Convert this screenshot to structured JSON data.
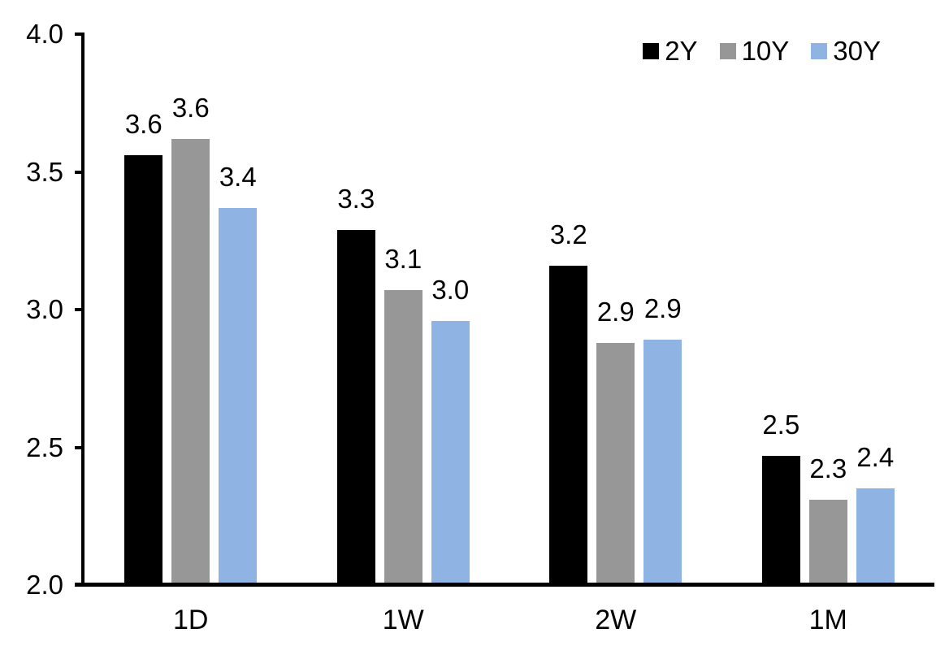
{
  "chart_data": {
    "type": "bar",
    "title": "",
    "categories": [
      "1D",
      "1W",
      "2W",
      "1M"
    ],
    "series": [
      {
        "name": "2Y",
        "color": "#000000",
        "values": [
          3.56,
          3.29,
          3.16,
          2.47
        ],
        "labels": [
          "3.6",
          "3.3",
          "3.2",
          "2.5"
        ]
      },
      {
        "name": "10Y",
        "color": "#979797",
        "values": [
          3.62,
          3.07,
          2.88,
          2.31
        ],
        "labels": [
          "3.6",
          "3.1",
          "2.9",
          "2.3"
        ]
      },
      {
        "name": "30Y",
        "color": "#8FB3E2",
        "values": [
          3.37,
          2.96,
          2.89,
          2.35
        ],
        "labels": [
          "3.4",
          "3.0",
          "2.9",
          "2.4"
        ]
      }
    ],
    "y_axis": {
      "min": 2.0,
      "max": 4.0,
      "tick_step": 0.5,
      "tick_labels": [
        "2.0",
        "2.5",
        "3.0",
        "3.5",
        "4.0"
      ]
    },
    "x_axis": {
      "tick_labels": [
        "1D",
        "1W",
        "2W",
        "1M"
      ]
    },
    "legend": {
      "position": "top-right",
      "entries": [
        "2Y",
        "10Y",
        "30Y"
      ]
    },
    "grid": false,
    "background_color": "#ffffff",
    "axis_color": "#000000"
  }
}
